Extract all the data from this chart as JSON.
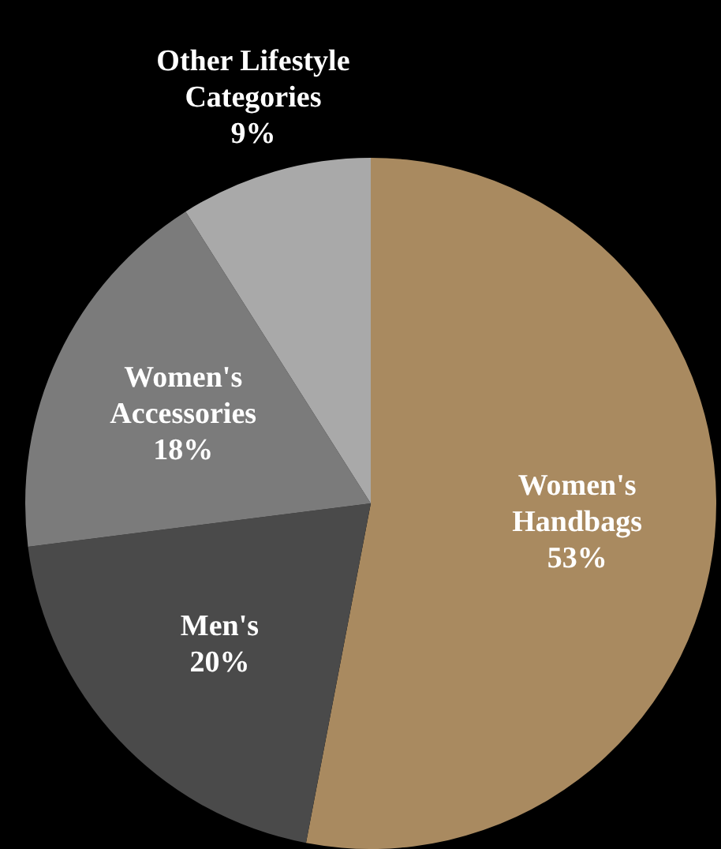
{
  "chart_data": {
    "type": "pie",
    "categories": [
      "Women's Handbags",
      "Men's",
      "Women's Accessories",
      "Other Lifestyle Categories"
    ],
    "values": [
      53,
      20,
      18,
      9
    ],
    "value_labels": [
      "53%",
      "20%",
      "18%",
      "9%"
    ],
    "colors": [
      "#a98a60",
      "#4a4a4a",
      "#7b7b7b",
      "#a9a9a9"
    ],
    "legend": false
  }
}
